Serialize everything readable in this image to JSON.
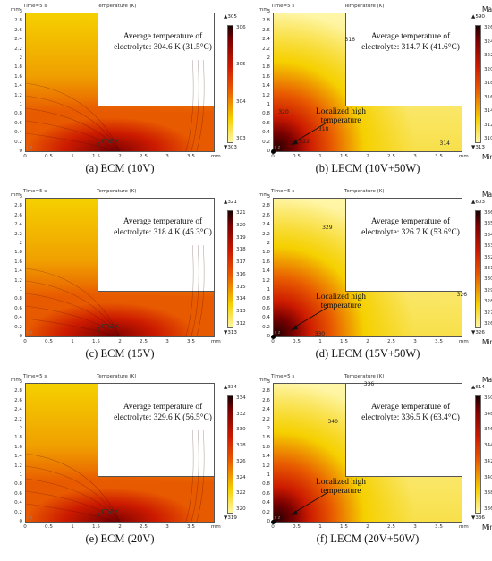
{
  "chart_data": [
    {
      "type": "heatmap",
      "id": "a",
      "header_time": "Time=5 s",
      "header_title": "Temperature (K)",
      "annotation": "Average temperature of electrolyte: 304.6 K (31.5°C)",
      "avg_line1": "Average temperature of",
      "avg_line2": "electrolyte: 304.6 K (31.5°C)",
      "caption": "(a) ECM (10V)",
      "colorbar_max": "305",
      "colorbar_min": "303",
      "colorbar_ticks": [
        "306",
        "305",
        "304",
        "303"
      ],
      "max_label": "max",
      "contour_labels": [],
      "localized_label": "",
      "xlim": [
        0,
        4
      ],
      "ylim": [
        0,
        3
      ],
      "x_ticks": [
        "0",
        "0.5",
        "1",
        "1.5",
        "2",
        "2.5",
        "3",
        "3.5"
      ],
      "y_ticks": [
        "0",
        "0.2",
        "0.4",
        "0.6",
        "0.8",
        "1",
        "1.2",
        "1.4",
        "1.6",
        "1.8",
        "2",
        "2.2",
        "2.4",
        "2.6",
        "2.8",
        "3"
      ],
      "unit": "mm"
    },
    {
      "type": "heatmap",
      "id": "b",
      "header_time": "Time=5 s",
      "header_title": "Temperature (K)",
      "annotation": "Average temperature of electrolyte: 314.7 K (41.6°C)",
      "avg_line1": "Average temperature of",
      "avg_line2": "electrolyte: 314.7 K (41.6°C)",
      "caption": "(b) LECM (10V+50W)",
      "colorbar_max": "590",
      "colorbar_min": "313",
      "colorbar_ticks": [
        "326",
        "324",
        "322",
        "320",
        "318",
        "316",
        "314",
        "312",
        "310"
      ],
      "max_label": "",
      "contour_labels": [
        "316",
        "320",
        "318",
        "314",
        "322"
      ],
      "localized_label": "Localized high temperature",
      "loc_line1": "Localized high",
      "loc_line2": "temperature",
      "xlim": [
        0,
        4
      ],
      "ylim": [
        0,
        3
      ],
      "x_ticks": [
        "0",
        "0.5",
        "1",
        "1.5",
        "2",
        "2.5",
        "3",
        "3.5"
      ],
      "y_ticks": [
        "0",
        "0.2",
        "0.4",
        "0.6",
        "0.8",
        "1",
        "1.2",
        "1.4",
        "1.6",
        "1.8",
        "2",
        "2.2",
        "2.4",
        "2.6",
        "2.8",
        "3"
      ],
      "unit": "mm"
    },
    {
      "type": "heatmap",
      "id": "c",
      "header_time": "Time=5 s",
      "header_title": "Temperature (K)",
      "annotation": "Average temperature of electrolyte: 318.4 K (45.3°C)",
      "avg_line1": "Average temperature of",
      "avg_line2": "electrolyte: 318.4 K (45.3°C)",
      "caption": "(c) ECM (15V)",
      "colorbar_max": "321",
      "colorbar_min": "313",
      "colorbar_ticks": [
        "321",
        "320",
        "319",
        "318",
        "317",
        "316",
        "315",
        "314",
        "313",
        "312"
      ],
      "max_label": "max",
      "contour_labels": [],
      "localized_label": "",
      "xlim": [
        0,
        4
      ],
      "ylim": [
        0,
        3
      ],
      "x_ticks": [
        "0",
        "0.5",
        "1",
        "1.5",
        "2",
        "2.5",
        "3",
        "3.5"
      ],
      "y_ticks": [
        "0",
        "0.2",
        "0.4",
        "0.6",
        "0.8",
        "1",
        "1.2",
        "1.4",
        "1.6",
        "1.8",
        "2",
        "2.2",
        "2.4",
        "2.6",
        "2.8",
        "3"
      ],
      "unit": "mm"
    },
    {
      "type": "heatmap",
      "id": "d",
      "header_time": "Time=5 s",
      "header_title": "Temperature (K)",
      "annotation": "Average temperature of electrolyte: 326.7 K (53.6°C)",
      "avg_line1": "Average temperature of",
      "avg_line2": "electrolyte: 326.7 K (53.6°C)",
      "caption": "(d) LECM (15V+50W)",
      "colorbar_max": "603",
      "colorbar_min": "326",
      "colorbar_ticks": [
        "336",
        "335",
        "334",
        "333",
        "332",
        "331",
        "330",
        "329",
        "328",
        "327",
        "326"
      ],
      "max_label": "",
      "contour_labels": [
        "329",
        "326",
        "330"
      ],
      "localized_label": "Localized high temperature",
      "loc_line1": "Localized high",
      "loc_line2": "temperature",
      "xlim": [
        0,
        4
      ],
      "ylim": [
        0,
        3
      ],
      "x_ticks": [
        "0",
        "0.5",
        "1",
        "1.5",
        "2",
        "2.5",
        "3",
        "3.5"
      ],
      "y_ticks": [
        "0",
        "0.2",
        "0.4",
        "0.6",
        "0.8",
        "1",
        "1.2",
        "1.4",
        "1.6",
        "1.8",
        "2",
        "2.2",
        "2.4",
        "2.6",
        "2.8",
        "3"
      ],
      "unit": "mm"
    },
    {
      "type": "heatmap",
      "id": "e",
      "header_time": "Time=5 s",
      "header_title": "Temperature (K)",
      "annotation": "Average temperature of electrolyte: 329.6 K (56.5°C)",
      "avg_line1": "Average temperature of",
      "avg_line2": "electrolyte: 329.6 K (56.5°C)",
      "caption": "(e) ECM (20V)",
      "colorbar_max": "334",
      "colorbar_min": "319",
      "colorbar_ticks": [
        "334",
        "332",
        "330",
        "328",
        "326",
        "324",
        "322",
        "320"
      ],
      "max_label": "max",
      "contour_labels": [],
      "localized_label": "",
      "xlim": [
        0,
        4
      ],
      "ylim": [
        0,
        3
      ],
      "x_ticks": [
        "0",
        "0.5",
        "1",
        "1.5",
        "2",
        "2.5",
        "3",
        "3.5"
      ],
      "y_ticks": [
        "0",
        "0.2",
        "0.4",
        "0.6",
        "0.8",
        "1",
        "1.2",
        "1.4",
        "1.6",
        "1.8",
        "2",
        "2.2",
        "2.4",
        "2.6",
        "2.8",
        "3"
      ],
      "unit": "mm"
    },
    {
      "type": "heatmap",
      "id": "f",
      "header_time": "Time=5 s",
      "header_title": "Temperature (K)",
      "annotation": "Average temperature of electrolyte: 336.5 K (63.4°C)",
      "avg_line1": "Average temperature of",
      "avg_line2": "electrolyte: 336.5 K (63.4°C)",
      "caption": "(f) LECM (20V+50W)",
      "colorbar_max": "614",
      "colorbar_min": "336",
      "colorbar_ticks": [
        "350",
        "348",
        "346",
        "344",
        "342",
        "340",
        "338",
        "336"
      ],
      "max_label": "",
      "contour_labels": [
        "336",
        "340"
      ],
      "localized_label": "Localized high temperature",
      "loc_line1": "Localized high",
      "loc_line2": "temperature",
      "xlim": [
        0,
        4
      ],
      "ylim": [
        0,
        3
      ],
      "x_ticks": [
        "0",
        "0.5",
        "1",
        "1.5",
        "2",
        "2.5",
        "3",
        "3.5"
      ],
      "y_ticks": [
        "0",
        "0.2",
        "0.4",
        "0.6",
        "0.8",
        "1",
        "1.2",
        "1.4",
        "1.6",
        "1.8",
        "2",
        "2.2",
        "2.4",
        "2.6",
        "2.8",
        "3"
      ],
      "unit": "mm"
    }
  ],
  "colorbar_labels": {
    "max": "Max",
    "min": "Min"
  },
  "axis_small": {
    "rz": "r  z"
  },
  "colors": {
    "heat_dark": "#7a0000",
    "heat_red": "#cc1a00",
    "heat_orange": "#e85a00",
    "heat_yellow": "#f5d000",
    "heat_light": "#fff6a8"
  }
}
